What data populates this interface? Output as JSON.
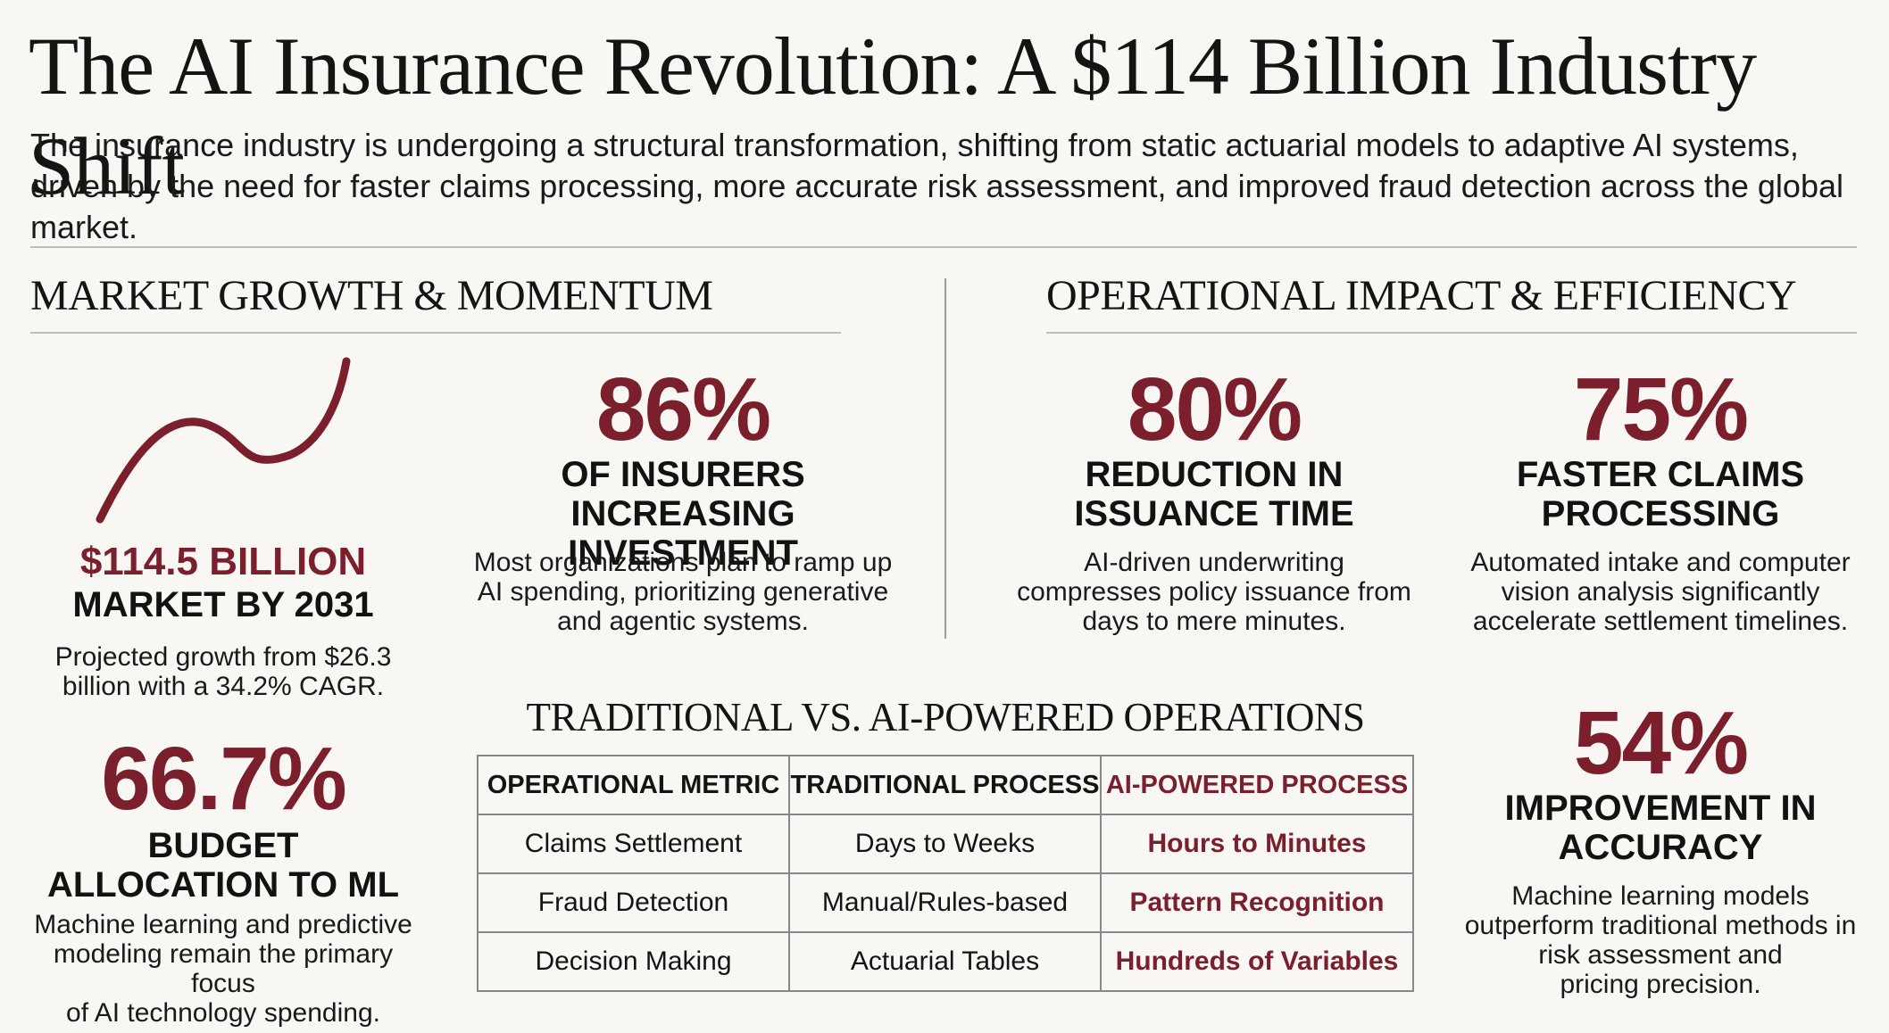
{
  "header": {
    "title": "The AI Insurance Revolution: A $114 Billion Industry Shift",
    "intro": "The insurance industry is undergoing a structural transformation, shifting from static actuarial models to adaptive AI systems, driven by the need for faster claims processing, more accurate risk assessment, and improved fraud detection across the global market."
  },
  "market": {
    "heading": "MARKET GROWTH & MOMENTUM",
    "trend_icon": "trend-line-icon",
    "market_value": "$114.5 BILLION",
    "market_label": "MARKET BY 2031",
    "market_desc": "Projected growth from $26.3\nbillion with a 34.2% CAGR.",
    "investment_pct": "86%",
    "investment_label": "OF INSURERS\nINCREASING INVESTMENT",
    "investment_desc": "Most organizations plan to ramp up\nAI spending, prioritizing generative\nand agentic systems.",
    "budget_pct": "66.7%",
    "budget_label": "BUDGET\nALLOCATION TO ML",
    "budget_desc": "Machine learning and predictive\nmodeling remain the primary focus\nof AI technology spending."
  },
  "operational": {
    "heading": "OPERATIONAL IMPACT & EFFICIENCY",
    "issuance_pct": "80%",
    "issuance_label": "REDUCTION IN\nISSUANCE TIME",
    "issuance_desc": "AI-driven underwriting\ncompresses policy issuance from\ndays to mere minutes.",
    "claims_pct": "75%",
    "claims_label": "FASTER CLAIMS\nPROCESSING",
    "claims_desc": "Automated intake and computer\nvision analysis significantly\naccelerate settlement timelines.",
    "accuracy_pct": "54%",
    "accuracy_label": "IMPROVEMENT IN\nACCURACY",
    "accuracy_desc": "Machine learning models\noutperform traditional methods in\nrisk assessment and\npricing precision."
  },
  "comparison": {
    "heading": "TRADITIONAL VS. AI-POWERED OPERATIONS",
    "columns": [
      "OPERATIONAL METRIC",
      "TRADITIONAL PROCESS",
      "AI-POWERED PROCESS"
    ],
    "rows": [
      [
        "Claims Settlement",
        "Days to Weeks",
        "Hours to Minutes"
      ],
      [
        "Fraud Detection",
        "Manual/Rules-based",
        "Pattern Recognition"
      ],
      [
        "Decision Making",
        "Actuarial Tables",
        "Hundreds of Variables"
      ]
    ]
  },
  "colors": {
    "accent": "#7a1f2b",
    "background": "#f8f7f4",
    "text": "#141414",
    "rule": "#bdbdbd"
  }
}
